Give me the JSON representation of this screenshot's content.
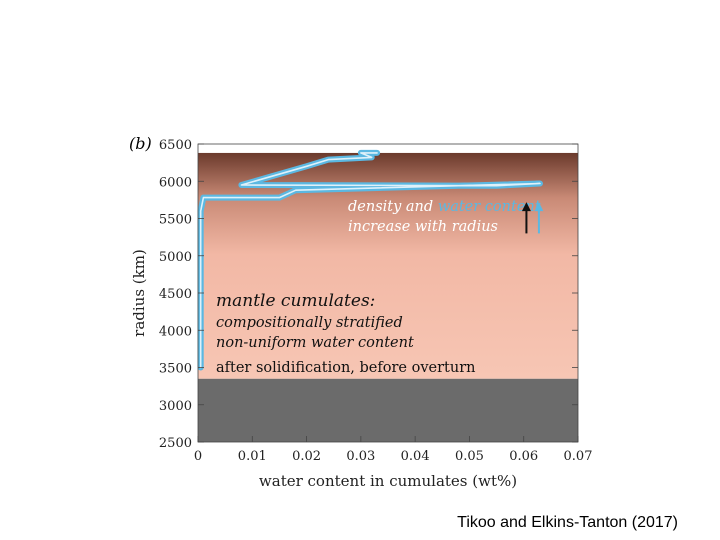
{
  "chart_data": {
    "type": "line",
    "panel_label": "(b)",
    "xlabel": "water content in cumulates (wt%)",
    "ylabel": "radius (km)",
    "xlim": [
      0,
      0.07
    ],
    "ylim": [
      2500,
      6500
    ],
    "x_ticks": [
      0,
      0.01,
      0.02,
      0.03,
      0.04,
      0.05,
      0.06,
      0.07
    ],
    "x_tick_labels": [
      "0",
      "0.01",
      "0.02",
      "0.03",
      "0.04",
      "0.05",
      "0.06",
      "0.07"
    ],
    "y_ticks": [
      2500,
      3000,
      3500,
      4000,
      4500,
      5000,
      5500,
      6000,
      6500
    ],
    "y_tick_labels": [
      "2500",
      "3000",
      "3500",
      "4000",
      "4500",
      "5000",
      "5500",
      "6000",
      "6500"
    ],
    "regions": [
      {
        "name": "core",
        "y_from": 2500,
        "y_to": 3350,
        "color": "#6b6b6b"
      },
      {
        "name": "mantle",
        "y_from": 3350,
        "y_to": 6380,
        "color_bottom": "#f7c6b4",
        "color_top": "#6b3a2c"
      }
    ],
    "series": [
      {
        "color": "#5bb8e2",
        "points": [
          [
            0.0005,
            3500
          ],
          [
            0.0005,
            5600
          ],
          [
            0.001,
            5780
          ],
          [
            0.015,
            5780
          ],
          [
            0.018,
            5880
          ],
          [
            0.063,
            5970
          ],
          [
            0.055,
            5940
          ],
          [
            0.008,
            5950
          ],
          [
            0.02,
            6200
          ],
          [
            0.024,
            6290
          ],
          [
            0.032,
            6320
          ],
          [
            0.03,
            6380
          ],
          [
            0.033,
            6380
          ]
        ]
      }
    ],
    "annotations": [
      {
        "text": "density and ",
        "style": "italic"
      },
      {
        "text": "water content",
        "style": "italic",
        "color": "#5bb8e2"
      },
      {
        "text": "increase with radius",
        "style": "italic"
      },
      {
        "text": "mantle cumulates:",
        "style": "italic-large"
      },
      {
        "text": "compositionally stratified",
        "style": "italic"
      },
      {
        "text": "non-uniform water content",
        "style": "italic"
      },
      {
        "text": "after solidification, before overturn",
        "style": "plain"
      }
    ],
    "arrows": [
      {
        "color": "#111111",
        "x": 0.0605,
        "y_from": 5300,
        "y_to": 5720
      },
      {
        "color": "#5bb8e2",
        "x": 0.0628,
        "y_from": 5300,
        "y_to": 5720
      }
    ]
  },
  "caption": "Tikoo and Elkins-Tanton (2017)"
}
